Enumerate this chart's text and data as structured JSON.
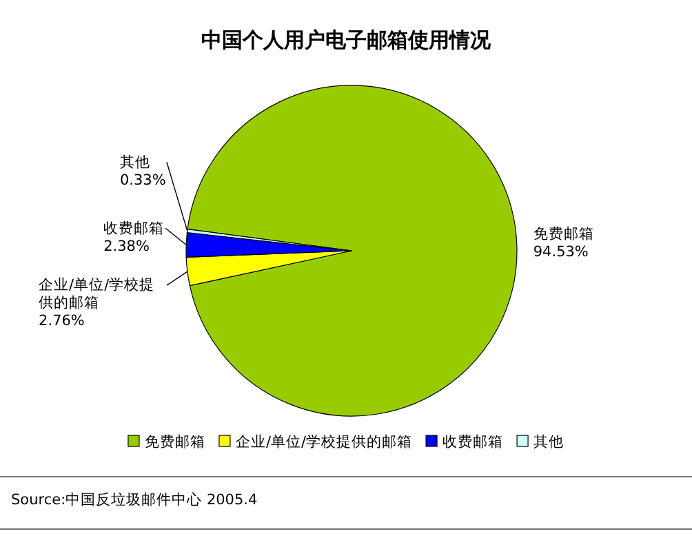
{
  "chart_data": {
    "type": "pie",
    "title": "中国个人用户电子邮箱使用情况",
    "categories": [
      "免费邮箱",
      "企业/单位/学校提供的邮箱",
      "收费邮箱",
      "其他"
    ],
    "values": [
      94.53,
      2.76,
      2.38,
      0.33
    ],
    "colors": [
      "#99cc00",
      "#ffff00",
      "#0000ff",
      "#ccffff"
    ],
    "value_labels": [
      "94.53%",
      "2.76%",
      "2.38%",
      "0.33%"
    ],
    "legend": "bottom",
    "annotations": [
      "Source:中国反垃圾邮件中心 2005.4"
    ]
  }
}
